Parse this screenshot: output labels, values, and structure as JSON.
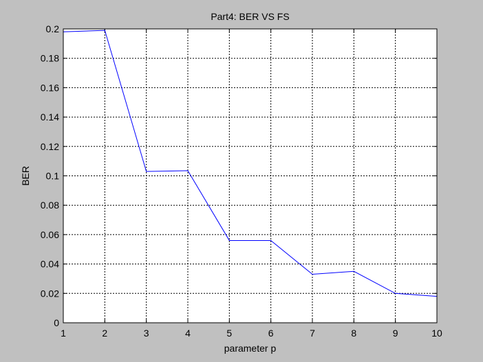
{
  "chart_data": {
    "type": "line",
    "title": "Part4: BER VS FS",
    "xlabel": "parameter p",
    "ylabel": "BER",
    "xlim": [
      1,
      10
    ],
    "ylim": [
      0,
      0.2
    ],
    "xticks": [
      "1",
      "2",
      "3",
      "4",
      "5",
      "6",
      "7",
      "8",
      "9",
      "10"
    ],
    "yticks": [
      "0",
      "0.02",
      "0.04",
      "0.06",
      "0.08",
      "0.1",
      "0.12",
      "0.14",
      "0.16",
      "0.18",
      "0.2"
    ],
    "grid": true,
    "legend": "none",
    "series": [
      {
        "color": "#0000ff",
        "x": [
          1,
          2,
          3,
          4,
          5,
          6,
          7,
          8,
          9,
          10
        ],
        "y": [
          0.198,
          0.199,
          0.103,
          0.1035,
          0.056,
          0.056,
          0.033,
          0.035,
          0.02,
          0.018
        ]
      }
    ]
  },
  "colors": {
    "figure_background": "#c0c0c0",
    "axes_background": "#ffffff",
    "grid": "#000000",
    "line": "#0000ff"
  }
}
